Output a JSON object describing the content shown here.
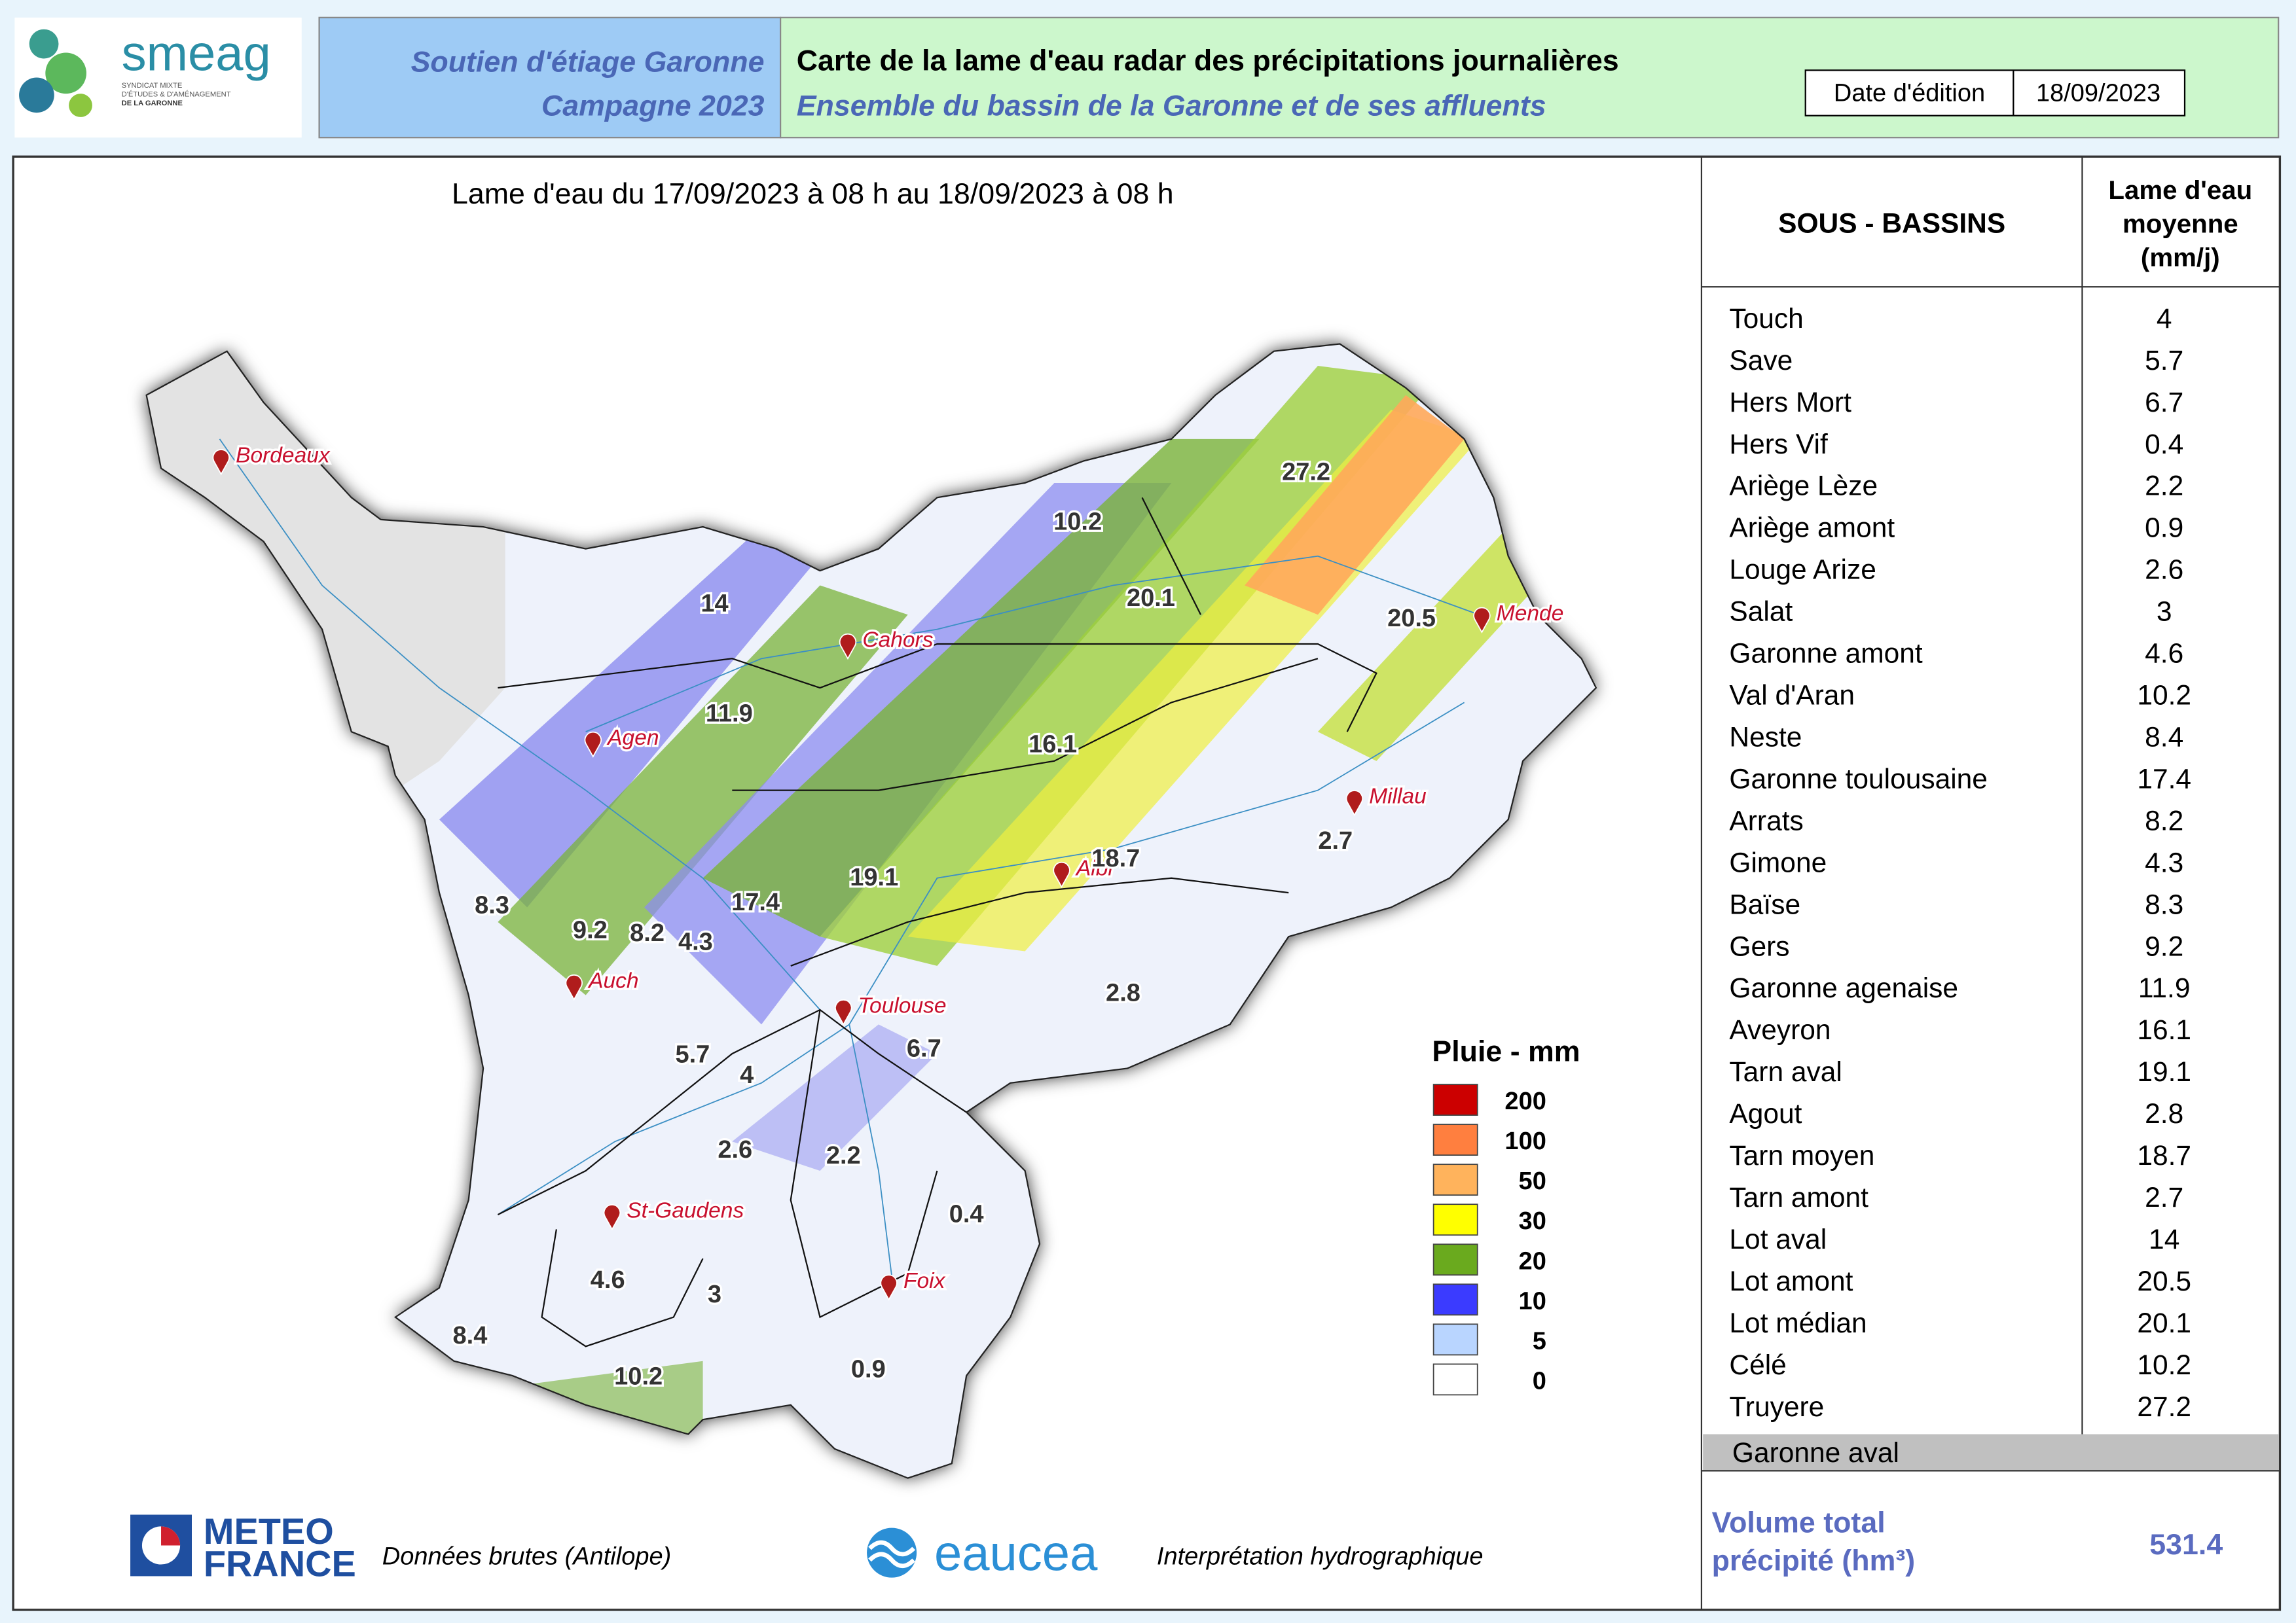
{
  "header": {
    "org": "smeag",
    "org_sub": [
      "SYNDICAT MIXTE",
      "D'ÉTUDES & D'AMÉNAGEMENT",
      "DE LA GARONNE"
    ],
    "program": "Soutien d'étiage Garonne",
    "campaign": "Campagne 2023",
    "title": "Carte de la lame d'eau radar des précipitations journalières",
    "subtitle": "Ensemble du bassin de la Garonne et de ses affluents",
    "date_label": "Date d'édition",
    "date": "18/09/2023"
  },
  "map": {
    "title": "Lame d'eau du 17/09/2023  à 08 h au  18/09/2023   à 08 h",
    "cities": [
      "Bordeaux",
      "Cahors",
      "Agen",
      "Mende",
      "Millau",
      "Albi",
      "Auch",
      "Toulouse",
      "St-Gaudens",
      "Foix"
    ],
    "basin_labels": [
      27.2,
      10.2,
      20.1,
      14,
      20.5,
      11.9,
      16.1,
      8.3,
      9.2,
      8.2,
      4.3,
      17.4,
      19.1,
      18.7,
      2.7,
      2.8,
      5.7,
      4,
      6.7,
      2.6,
      2.2,
      0.4,
      4.6,
      3,
      8.4,
      10.2,
      0.9
    ],
    "legend": {
      "title": "Pluie - mm",
      "items": [
        {
          "label": 200,
          "color": "#cc0000"
        },
        {
          "label": 100,
          "color": "#ff7f3f"
        },
        {
          "label": 50,
          "color": "#ffb35c"
        },
        {
          "label": 30,
          "color": "#ffff00"
        },
        {
          "label": 20,
          "color": "#6aaa1e"
        },
        {
          "label": 10,
          "color": "#3b3bff"
        },
        {
          "label": 5,
          "color": "#b9d5ff"
        },
        {
          "label": 0,
          "color": "#ffffff"
        }
      ]
    }
  },
  "table": {
    "header": [
      "SOUS - BASSINS",
      [
        "Lame d'eau",
        "moyenne",
        "(mm/j)"
      ]
    ],
    "rows": [
      [
        "Touch",
        4
      ],
      [
        "Save",
        5.7
      ],
      [
        "Hers Mort",
        6.7
      ],
      [
        "Hers Vif",
        0.4
      ],
      [
        "Ariège Lèze",
        2.2
      ],
      [
        "Ariège amont",
        0.9
      ],
      [
        "Louge Arize",
        2.6
      ],
      [
        "Salat",
        3
      ],
      [
        "Garonne amont",
        4.6
      ],
      [
        "Val d'Aran",
        10.2
      ],
      [
        "Neste",
        8.4
      ],
      [
        "Garonne toulousaine",
        17.4
      ],
      [
        "Arrats",
        8.2
      ],
      [
        "Gimone",
        4.3
      ],
      [
        "Baïse",
        8.3
      ],
      [
        "Gers",
        9.2
      ],
      [
        "Garonne agenaise",
        11.9
      ],
      [
        "Aveyron",
        16.1
      ],
      [
        "Tarn aval",
        19.1
      ],
      [
        "Agout",
        2.8
      ],
      [
        "Tarn moyen",
        18.7
      ],
      [
        "Tarn amont",
        2.7
      ],
      [
        "Lot aval",
        14
      ],
      [
        "Lot amont",
        20.5
      ],
      [
        "Lot médian",
        20.1
      ],
      [
        "Célé",
        10.2
      ],
      [
        "Truyere",
        27.2
      ],
      [
        "Garonne aval"
      ]
    ],
    "volume_label": [
      "Volume total",
      "précipité (hm³)"
    ],
    "volume": 531.4
  },
  "footer": {
    "meteo": [
      "METEO",
      "FRANCE"
    ],
    "meteo_caption": "Données brutes (Antilope)",
    "eaucea": "eaucea",
    "eaucea_caption": "Interprétation hydrographique"
  }
}
